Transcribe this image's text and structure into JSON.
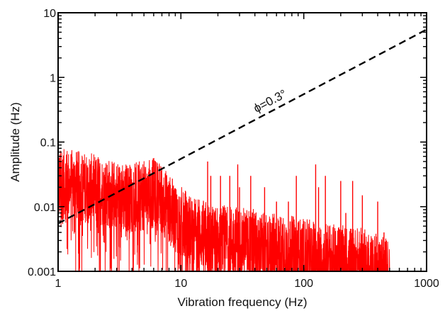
{
  "chart_data": {
    "type": "line",
    "title": "",
    "xlabel": "Vibration frequency (Hz)",
    "ylabel": "Amplitude (Hz)",
    "xscale": "log",
    "yscale": "log",
    "xlim": [
      1,
      1000
    ],
    "ylim": [
      0.001,
      10
    ],
    "grid": false,
    "legend": "none",
    "x_tick_labels": [
      "1",
      "10",
      "100",
      "1000"
    ],
    "y_tick_labels": [
      "0.001",
      "0.01",
      "0.1",
      "1",
      "10"
    ],
    "annotation": {
      "text": "ϕ=0.3°"
    },
    "series": [
      {
        "style": "dashed",
        "color": "#000000",
        "x": [
          1,
          1000
        ],
        "y": [
          0.0055,
          5.5
        ]
      },
      {
        "style": "spectrum",
        "color": "#ff0000",
        "x": [
          1,
          1.2,
          1.5,
          2,
          3,
          4,
          5,
          6,
          7,
          8,
          10,
          12,
          15,
          20,
          30,
          40,
          50,
          70,
          100,
          150,
          200,
          300,
          400,
          500
        ],
        "y": [
          0.03,
          0.03,
          0.028,
          0.025,
          0.02,
          0.018,
          0.02,
          0.022,
          0.018,
          0.012,
          0.008,
          0.006,
          0.005,
          0.004,
          0.004,
          0.0035,
          0.003,
          0.003,
          0.0025,
          0.0022,
          0.002,
          0.0018,
          0.0015,
          0.0012
        ],
        "peaks": [
          {
            "x": 12.3,
            "y": 0.012
          },
          {
            "x": 16.5,
            "y": 0.05
          },
          {
            "x": 17.5,
            "y": 0.03
          },
          {
            "x": 21,
            "y": 0.03
          },
          {
            "x": 25,
            "y": 0.03
          },
          {
            "x": 29,
            "y": 0.045
          },
          {
            "x": 30,
            "y": 0.02
          },
          {
            "x": 37,
            "y": 0.03
          },
          {
            "x": 48,
            "y": 0.02
          },
          {
            "x": 60,
            "y": 0.012
          },
          {
            "x": 75,
            "y": 0.012
          },
          {
            "x": 87,
            "y": 0.03
          },
          {
            "x": 125,
            "y": 0.045
          },
          {
            "x": 132,
            "y": 0.02
          },
          {
            "x": 150,
            "y": 0.03
          },
          {
            "x": 200,
            "y": 0.025
          },
          {
            "x": 220,
            "y": 0.008
          },
          {
            "x": 250,
            "y": 0.025
          },
          {
            "x": 300,
            "y": 0.015
          },
          {
            "x": 400,
            "y": 0.012
          },
          {
            "x": 450,
            "y": 0.004
          }
        ]
      }
    ]
  }
}
